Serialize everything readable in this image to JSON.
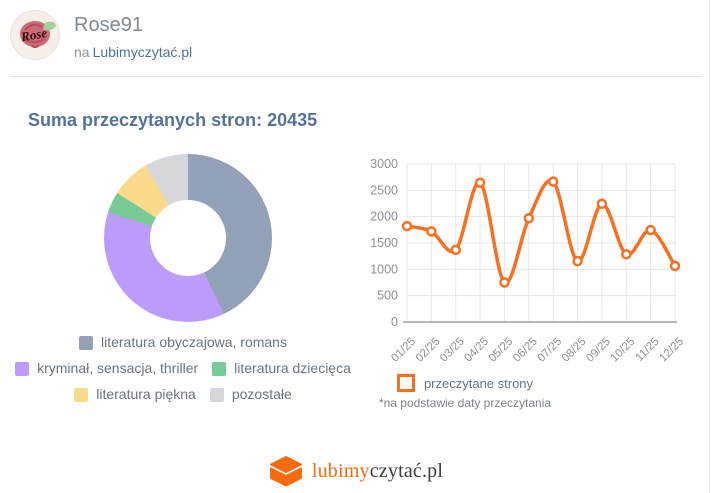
{
  "header": {
    "avatar_text": "Rose",
    "username": "Rose91",
    "subtitle_prefix": "na",
    "subtitle_link": "Lubimyczytać.pl"
  },
  "page_title": "Suma przeczytanych stron: 20435",
  "total_pages": 20435,
  "colors": {
    "accent_orange": "#fa7021",
    "title_blue": "#54749e",
    "legend_text_gray": "#6b7682",
    "axis_label_gray": "#8a929b",
    "gridline": "#e7e7e7",
    "axis_line": "#b4b7ba"
  },
  "chart_data": [
    {
      "type": "pie",
      "subtype": "donut",
      "title": "",
      "categories": [
        "literatura obyczajowa, romans",
        "kryminał, sensacja, thriller",
        "literatura dziecięca",
        "literatura piękna",
        "pozostałe"
      ],
      "values_percent": [
        43,
        37,
        4,
        7.6,
        8.4
      ],
      "colors": [
        "#93a1b8",
        "#bb9cfa",
        "#77cb95",
        "#fbd98a",
        "#d5d7db"
      ],
      "legend_position": "bottom"
    },
    {
      "type": "line",
      "title": "",
      "x": [
        "01/25",
        "02/25",
        "03/25",
        "04/25",
        "05/25",
        "06/25",
        "07/25",
        "08/25",
        "09/25",
        "10/25",
        "11/25",
        "12/25"
      ],
      "series": [
        {
          "name": "przeczytane strony",
          "values": [
            1820,
            1720,
            1370,
            2645,
            750,
            1970,
            2665,
            1155,
            2245,
            1285,
            1745,
            1065
          ]
        }
      ],
      "ylim": [
        0,
        3000
      ],
      "ytick_step": 500,
      "grid": true,
      "line_color": "#fa7021",
      "marker": "open-circle",
      "legend_position": "bottom",
      "note": "*na podstawie daty przeczytania"
    }
  ],
  "footer": {
    "logo_orange": "lubimy",
    "logo_dark": "czytać.pl"
  }
}
